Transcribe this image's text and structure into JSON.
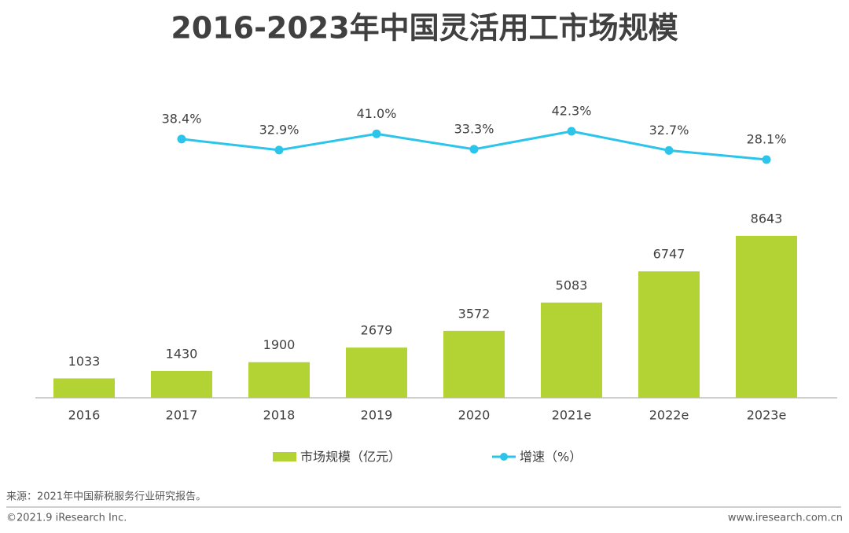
{
  "chart_data": {
    "type": "bar",
    "title": "2016-2023年中国灵活用工市场规模",
    "categories": [
      "2016",
      "2017",
      "2018",
      "2019",
      "2020",
      "2021e",
      "2022e",
      "2023e"
    ],
    "series": [
      {
        "name": "市场规模（亿元）",
        "type": "bar",
        "color": "#b3d334",
        "values": [
          1033,
          1430,
          1900,
          2679,
          3572,
          5083,
          6747,
          8643
        ]
      },
      {
        "name": "增速（%）",
        "type": "line",
        "color": "#2bc4ea",
        "values": [
          null,
          38.4,
          32.9,
          41.0,
          33.3,
          42.3,
          32.7,
          28.1
        ],
        "value_labels": [
          null,
          "38.4%",
          "32.9%",
          "41.0%",
          "33.3%",
          "42.3%",
          "32.7%",
          "28.1%"
        ]
      }
    ]
  },
  "source": "来源：2021年中国薪税服务行业研究报告。",
  "copyright": "©2021.9 iResearch Inc.",
  "website": "www.iresearch.com.cn"
}
